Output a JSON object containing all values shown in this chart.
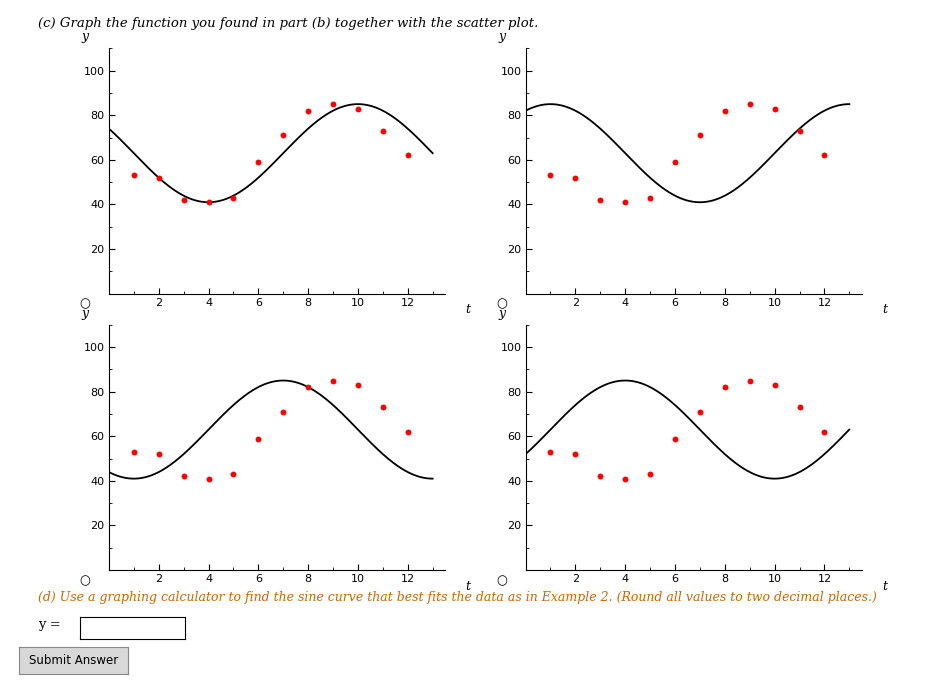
{
  "title_text": "(c) Graph the function you found in part (b) together with the scatter plot.",
  "bottom_text": "(d) Use a graphing calculator to find the sine curve that best fits the data as in Example 2. (Round all values to two decimal places.)",
  "scatter_t": [
    1,
    2,
    3,
    4,
    5,
    6,
    7,
    8,
    9,
    10,
    11,
    12
  ],
  "scatter_y": [
    53,
    52,
    42,
    41,
    43,
    59,
    71,
    82,
    85,
    83,
    73,
    62
  ],
  "plot_configs": [
    {
      "phi": -2.618,
      "A": 22,
      "D": 63,
      "t_start": 0.0,
      "t_end": 13.0
    },
    {
      "phi": 1.0472,
      "A": 22,
      "D": 63,
      "t_start": 0.0,
      "t_end": 13.0
    },
    {
      "phi": -1.0472,
      "A": 22,
      "D": 63,
      "t_start": 0.0,
      "t_end": 13.0
    },
    {
      "phi": 0.5236,
      "A": 22,
      "D": 63,
      "t_start": 0.0,
      "t_end": 13.0
    }
  ],
  "scatter_color": "#ff0000",
  "curve_color": "#000000",
  "bg_color": "#ffffff",
  "ylim": [
    0,
    110
  ],
  "yticks": [
    20,
    40,
    60,
    80,
    100
  ],
  "xlim": [
    0,
    13.5
  ],
  "xticks": [
    2,
    4,
    6,
    8,
    10,
    12
  ],
  "xlabel": "t",
  "ylabel": "y",
  "omega": 0.5236
}
